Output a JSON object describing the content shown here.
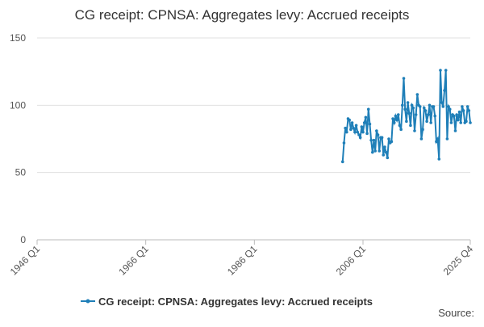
{
  "chart_data": {
    "type": "line",
    "title": "CG receipt: CPNSA: Aggregates levy: Accrued receipts",
    "source": "Source:",
    "xlim": [
      "1946 Q1",
      "2025 Q4"
    ],
    "xticks": [
      "1946 Q1",
      "1966 Q1",
      "1986 Q1",
      "2006 Q1",
      "2025 Q4"
    ],
    "ylim": [
      0,
      150
    ],
    "yticks": [
      0,
      50,
      100,
      150
    ],
    "grid": true,
    "legend": "bottom",
    "x": [
      "2002 Q2",
      "2002 Q3",
      "2002 Q4",
      "2003 Q1",
      "2003 Q2",
      "2003 Q3",
      "2003 Q4",
      "2004 Q1",
      "2004 Q2",
      "2004 Q3",
      "2004 Q4",
      "2005 Q1",
      "2005 Q2",
      "2005 Q3",
      "2005 Q4",
      "2006 Q1",
      "2006 Q2",
      "2006 Q3",
      "2006 Q4",
      "2007 Q1",
      "2007 Q2",
      "2007 Q3",
      "2007 Q4",
      "2008 Q1",
      "2008 Q2",
      "2008 Q3",
      "2008 Q4",
      "2009 Q1",
      "2009 Q2",
      "2009 Q3",
      "2009 Q4",
      "2010 Q1",
      "2010 Q2",
      "2010 Q3",
      "2010 Q4",
      "2011 Q1",
      "2011 Q2",
      "2011 Q3",
      "2011 Q4",
      "2012 Q1",
      "2012 Q2",
      "2012 Q3",
      "2012 Q4",
      "2013 Q1",
      "2013 Q2",
      "2013 Q3",
      "2013 Q4",
      "2014 Q1",
      "2014 Q2",
      "2014 Q3",
      "2014 Q4",
      "2015 Q1",
      "2015 Q2",
      "2015 Q3",
      "2015 Q4",
      "2016 Q1",
      "2016 Q2",
      "2016 Q3",
      "2016 Q4",
      "2017 Q1",
      "2017 Q2",
      "2017 Q3",
      "2017 Q4",
      "2018 Q1",
      "2018 Q2",
      "2018 Q3",
      "2018 Q4",
      "2019 Q1",
      "2019 Q2",
      "2019 Q3",
      "2019 Q4",
      "2020 Q1",
      "2020 Q2",
      "2020 Q3",
      "2020 Q4",
      "2021 Q1",
      "2021 Q2",
      "2021 Q3",
      "2021 Q4",
      "2022 Q1",
      "2022 Q2",
      "2022 Q3",
      "2022 Q4",
      "2023 Q1",
      "2023 Q2",
      "2023 Q3",
      "2023 Q4",
      "2024 Q1",
      "2024 Q2",
      "2024 Q3",
      "2024 Q4",
      "2025 Q1",
      "2025 Q2",
      "2025 Q3",
      "2025 Q4"
    ],
    "series": [
      {
        "name": "CG receipt: CPNSA: Aggregates levy: Accrued receipts",
        "color": "#1f7fb8",
        "values": [
          58,
          72,
          83,
          80,
          90,
          89,
          82,
          87,
          83,
          80,
          85,
          80,
          78,
          76,
          84,
          80,
          87,
          91,
          79,
          97,
          86,
          74,
          65,
          74,
          66,
          81,
          78,
          66,
          76,
          76,
          63,
          69,
          65,
          61,
          75,
          72,
          73,
          90,
          87,
          92,
          89,
          93,
          85,
          82,
          100,
          120,
          97,
          88,
          102,
          94,
          85,
          100,
          98,
          81,
          93,
          108,
          100,
          99,
          75,
          82,
          98,
          96,
          88,
          93,
          100,
          87,
          99,
          99,
          92,
          73,
          75,
          60,
          126,
          102,
          99,
          111,
          126,
          75,
          99,
          97,
          87,
          93,
          92,
          81,
          93,
          89,
          95,
          87,
          99,
          96,
          87,
          88,
          99,
          96,
          87
        ]
      }
    ]
  }
}
